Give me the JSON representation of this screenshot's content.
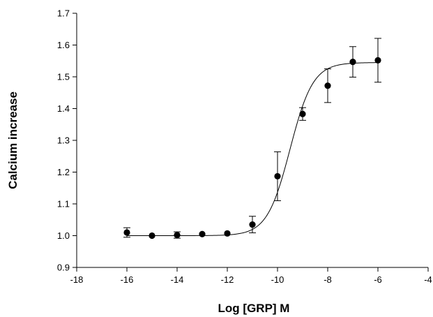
{
  "chart_data": {
    "type": "scatter",
    "title": "",
    "xlabel": "Log [GRP] M",
    "ylabel": "Calcium increase",
    "xlim": [
      -18,
      -4
    ],
    "ylim": [
      0.9,
      1.7
    ],
    "x_ticks": [
      -18,
      -16,
      -14,
      -12,
      -10,
      -8,
      -6,
      -4
    ],
    "x_tick_labels": [
      "-18",
      "-16",
      "-14",
      "-12",
      "-10",
      "-8",
      "-6",
      "-4"
    ],
    "y_ticks": [
      0.9,
      1.0,
      1.1,
      1.2,
      1.3,
      1.4,
      1.5,
      1.6,
      1.7
    ],
    "y_tick_labels": [
      "0.9",
      "1.0",
      "1.1",
      "1.2",
      "1.3",
      "1.4",
      "1.5",
      "1.6",
      "1.7"
    ],
    "grid": false,
    "legend": "none",
    "series": [
      {
        "points": [
          {
            "x": -16,
            "y": 1.01,
            "err": 0.015
          },
          {
            "x": -15,
            "y": 1.0,
            "err": 0.0
          },
          {
            "x": -14,
            "y": 1.002,
            "err": 0.01
          },
          {
            "x": -13,
            "y": 1.005,
            "err": 0.0
          },
          {
            "x": -12,
            "y": 1.007,
            "err": 0.0
          },
          {
            "x": -11,
            "y": 1.035,
            "err": 0.026
          },
          {
            "x": -10,
            "y": 1.187,
            "err": 0.077
          },
          {
            "x": -9,
            "y": 1.383,
            "err": 0.02
          },
          {
            "x": -8,
            "y": 1.472,
            "err": 0.053
          },
          {
            "x": -7,
            "y": 1.547,
            "err": 0.048
          },
          {
            "x": -6,
            "y": 1.552,
            "err": 0.069
          }
        ],
        "fit": {
          "model": "sigmoidal dose-response",
          "bottom": 1.0,
          "top": 1.545,
          "log_ec50": -9.5,
          "hill_slope": 0.95,
          "x_range": [
            -16,
            -6
          ]
        }
      }
    ],
    "colors": {
      "marker": "#000000",
      "line": "#000000",
      "axis": "#000000"
    }
  }
}
